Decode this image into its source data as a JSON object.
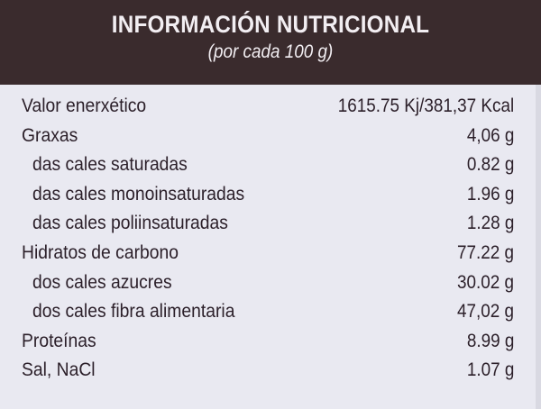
{
  "header": {
    "title": "INFORMACIÓN NUTRICIONAL",
    "subtitle": "(por cada 100 g)"
  },
  "rows": [
    {
      "name": "Valor enerxético",
      "value": "1615.75 Kj/381,37 Kcal"
    },
    {
      "name": "Graxas",
      "value": "4,06 g"
    },
    {
      "name": "das cales saturadas",
      "value": "0.82 g"
    },
    {
      "name": "das cales monoinsaturadas",
      "value": "1.96 g"
    },
    {
      "name": "das cales poliinsaturadas",
      "value": "1.28 g"
    },
    {
      "name": "Hidratos de carbono",
      "value": "77.22 g"
    },
    {
      "name": "dos cales azucres",
      "value": "30.02 g"
    },
    {
      "name": "dos cales fibra alimentaria",
      "value": "47,02 g"
    },
    {
      "name": "Proteínas",
      "value": "8.99 g"
    },
    {
      "name": "Sal, NaCl",
      "value": "1.07 g"
    }
  ],
  "colors": {
    "header_bg": "#3a2b2d",
    "body_bg": "#e9e9f1",
    "text": "#2b1f29"
  }
}
